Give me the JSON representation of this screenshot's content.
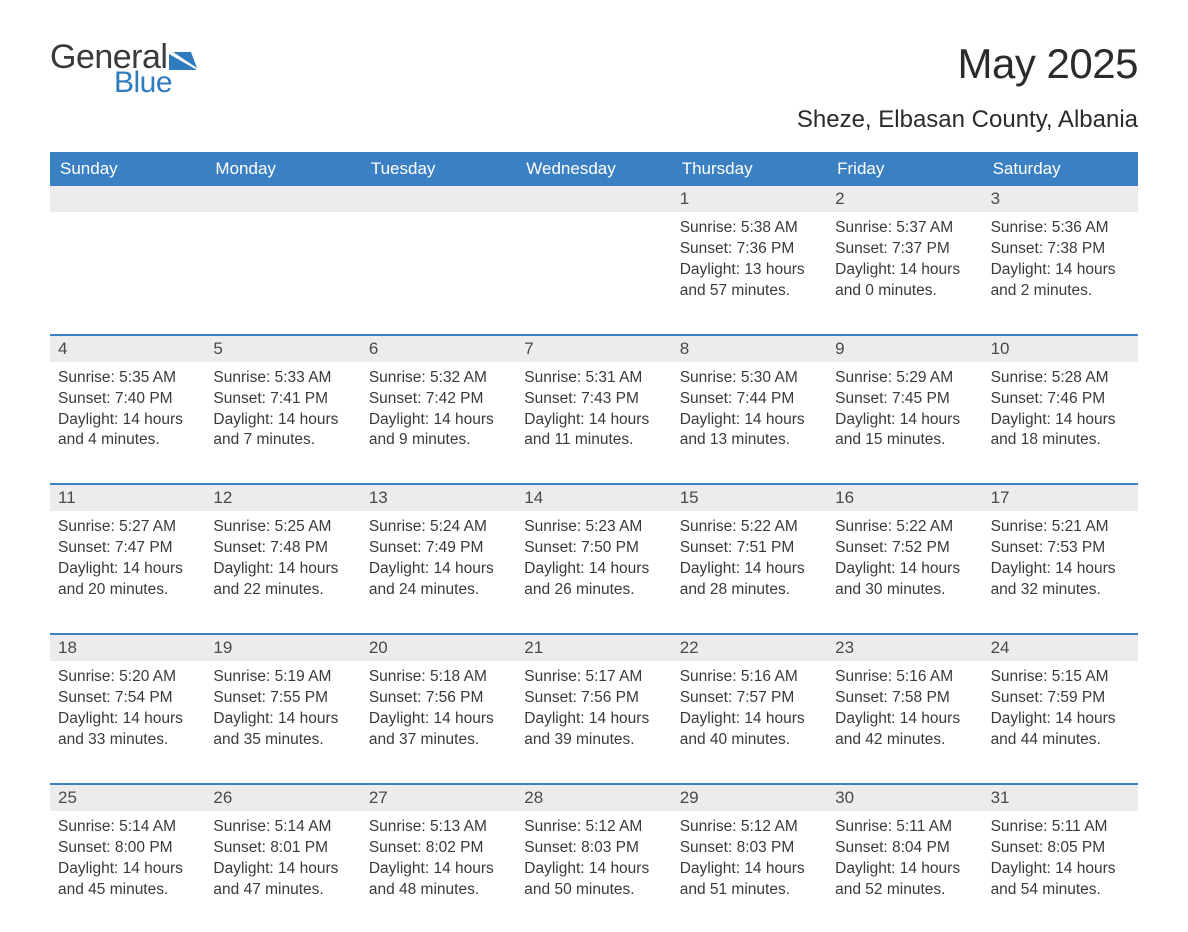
{
  "logo": {
    "text1": "General",
    "text2": "Blue",
    "mark_color": "#2f7bbf"
  },
  "header": {
    "month_title": "May 2025",
    "location": "Sheze, Elbasan County, Albania"
  },
  "colors": {
    "header_bar": "#3a80c3",
    "header_text": "#ffffff",
    "week_divider": "#3a80c3",
    "daynum_bg": "#ececec",
    "body_text": "#3a3a3a",
    "page_bg": "#ffffff"
  },
  "days_of_week": [
    "Sunday",
    "Monday",
    "Tuesday",
    "Wednesday",
    "Thursday",
    "Friday",
    "Saturday"
  ],
  "weeks": [
    [
      null,
      null,
      null,
      null,
      {
        "n": "1",
        "sunrise": "Sunrise: 5:38 AM",
        "sunset": "Sunset: 7:36 PM",
        "daylight": "Daylight: 13 hours and 57 minutes."
      },
      {
        "n": "2",
        "sunrise": "Sunrise: 5:37 AM",
        "sunset": "Sunset: 7:37 PM",
        "daylight": "Daylight: 14 hours and 0 minutes."
      },
      {
        "n": "3",
        "sunrise": "Sunrise: 5:36 AM",
        "sunset": "Sunset: 7:38 PM",
        "daylight": "Daylight: 14 hours and 2 minutes."
      }
    ],
    [
      {
        "n": "4",
        "sunrise": "Sunrise: 5:35 AM",
        "sunset": "Sunset: 7:40 PM",
        "daylight": "Daylight: 14 hours and 4 minutes."
      },
      {
        "n": "5",
        "sunrise": "Sunrise: 5:33 AM",
        "sunset": "Sunset: 7:41 PM",
        "daylight": "Daylight: 14 hours and 7 minutes."
      },
      {
        "n": "6",
        "sunrise": "Sunrise: 5:32 AM",
        "sunset": "Sunset: 7:42 PM",
        "daylight": "Daylight: 14 hours and 9 minutes."
      },
      {
        "n": "7",
        "sunrise": "Sunrise: 5:31 AM",
        "sunset": "Sunset: 7:43 PM",
        "daylight": "Daylight: 14 hours and 11 minutes."
      },
      {
        "n": "8",
        "sunrise": "Sunrise: 5:30 AM",
        "sunset": "Sunset: 7:44 PM",
        "daylight": "Daylight: 14 hours and 13 minutes."
      },
      {
        "n": "9",
        "sunrise": "Sunrise: 5:29 AM",
        "sunset": "Sunset: 7:45 PM",
        "daylight": "Daylight: 14 hours and 15 minutes."
      },
      {
        "n": "10",
        "sunrise": "Sunrise: 5:28 AM",
        "sunset": "Sunset: 7:46 PM",
        "daylight": "Daylight: 14 hours and 18 minutes."
      }
    ],
    [
      {
        "n": "11",
        "sunrise": "Sunrise: 5:27 AM",
        "sunset": "Sunset: 7:47 PM",
        "daylight": "Daylight: 14 hours and 20 minutes."
      },
      {
        "n": "12",
        "sunrise": "Sunrise: 5:25 AM",
        "sunset": "Sunset: 7:48 PM",
        "daylight": "Daylight: 14 hours and 22 minutes."
      },
      {
        "n": "13",
        "sunrise": "Sunrise: 5:24 AM",
        "sunset": "Sunset: 7:49 PM",
        "daylight": "Daylight: 14 hours and 24 minutes."
      },
      {
        "n": "14",
        "sunrise": "Sunrise: 5:23 AM",
        "sunset": "Sunset: 7:50 PM",
        "daylight": "Daylight: 14 hours and 26 minutes."
      },
      {
        "n": "15",
        "sunrise": "Sunrise: 5:22 AM",
        "sunset": "Sunset: 7:51 PM",
        "daylight": "Daylight: 14 hours and 28 minutes."
      },
      {
        "n": "16",
        "sunrise": "Sunrise: 5:22 AM",
        "sunset": "Sunset: 7:52 PM",
        "daylight": "Daylight: 14 hours and 30 minutes."
      },
      {
        "n": "17",
        "sunrise": "Sunrise: 5:21 AM",
        "sunset": "Sunset: 7:53 PM",
        "daylight": "Daylight: 14 hours and 32 minutes."
      }
    ],
    [
      {
        "n": "18",
        "sunrise": "Sunrise: 5:20 AM",
        "sunset": "Sunset: 7:54 PM",
        "daylight": "Daylight: 14 hours and 33 minutes."
      },
      {
        "n": "19",
        "sunrise": "Sunrise: 5:19 AM",
        "sunset": "Sunset: 7:55 PM",
        "daylight": "Daylight: 14 hours and 35 minutes."
      },
      {
        "n": "20",
        "sunrise": "Sunrise: 5:18 AM",
        "sunset": "Sunset: 7:56 PM",
        "daylight": "Daylight: 14 hours and 37 minutes."
      },
      {
        "n": "21",
        "sunrise": "Sunrise: 5:17 AM",
        "sunset": "Sunset: 7:56 PM",
        "daylight": "Daylight: 14 hours and 39 minutes."
      },
      {
        "n": "22",
        "sunrise": "Sunrise: 5:16 AM",
        "sunset": "Sunset: 7:57 PM",
        "daylight": "Daylight: 14 hours and 40 minutes."
      },
      {
        "n": "23",
        "sunrise": "Sunrise: 5:16 AM",
        "sunset": "Sunset: 7:58 PM",
        "daylight": "Daylight: 14 hours and 42 minutes."
      },
      {
        "n": "24",
        "sunrise": "Sunrise: 5:15 AM",
        "sunset": "Sunset: 7:59 PM",
        "daylight": "Daylight: 14 hours and 44 minutes."
      }
    ],
    [
      {
        "n": "25",
        "sunrise": "Sunrise: 5:14 AM",
        "sunset": "Sunset: 8:00 PM",
        "daylight": "Daylight: 14 hours and 45 minutes."
      },
      {
        "n": "26",
        "sunrise": "Sunrise: 5:14 AM",
        "sunset": "Sunset: 8:01 PM",
        "daylight": "Daylight: 14 hours and 47 minutes."
      },
      {
        "n": "27",
        "sunrise": "Sunrise: 5:13 AM",
        "sunset": "Sunset: 8:02 PM",
        "daylight": "Daylight: 14 hours and 48 minutes."
      },
      {
        "n": "28",
        "sunrise": "Sunrise: 5:12 AM",
        "sunset": "Sunset: 8:03 PM",
        "daylight": "Daylight: 14 hours and 50 minutes."
      },
      {
        "n": "29",
        "sunrise": "Sunrise: 5:12 AM",
        "sunset": "Sunset: 8:03 PM",
        "daylight": "Daylight: 14 hours and 51 minutes."
      },
      {
        "n": "30",
        "sunrise": "Sunrise: 5:11 AM",
        "sunset": "Sunset: 8:04 PM",
        "daylight": "Daylight: 14 hours and 52 minutes."
      },
      {
        "n": "31",
        "sunrise": "Sunrise: 5:11 AM",
        "sunset": "Sunset: 8:05 PM",
        "daylight": "Daylight: 14 hours and 54 minutes."
      }
    ]
  ]
}
